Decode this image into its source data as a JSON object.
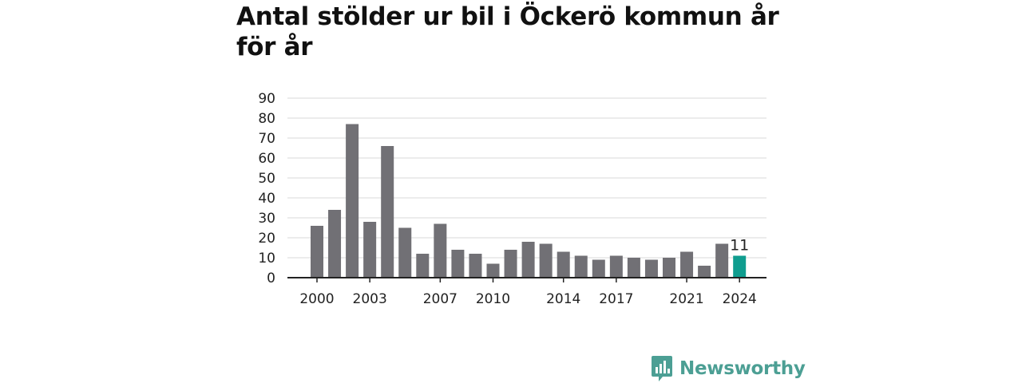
{
  "title": "Antal stölder ur bil i Öckerö kommun år för år",
  "logo": {
    "text": "Newsworthy",
    "icon": "bar-chart-speech-bubble-icon"
  },
  "colors": {
    "bar": "#717075",
    "highlight": "#0f9d8f",
    "grid": "#d9d9d9",
    "axis": "#222222",
    "logo": "#4c9f94"
  },
  "chart_data": {
    "type": "bar",
    "title": "Antal stölder ur bil i Öckerö kommun år för år",
    "xlabel": "",
    "ylabel": "",
    "categories": [
      2000,
      2001,
      2002,
      2003,
      2004,
      2005,
      2006,
      2007,
      2008,
      2009,
      2010,
      2011,
      2012,
      2013,
      2014,
      2015,
      2016,
      2017,
      2018,
      2019,
      2020,
      2021,
      2022,
      2023,
      2024
    ],
    "values": [
      26,
      34,
      77,
      28,
      66,
      25,
      12,
      27,
      14,
      12,
      7,
      14,
      18,
      17,
      13,
      11,
      9,
      11,
      10,
      9,
      10,
      13,
      6,
      17,
      11
    ],
    "x_tick_labels": [
      "2000",
      "2003",
      "2007",
      "2010",
      "2014",
      "2017",
      "2021",
      "2024"
    ],
    "y_ticks": [
      "0",
      "10",
      "20",
      "30",
      "40",
      "50",
      "60",
      "70",
      "80",
      "90"
    ],
    "ylim": [
      0,
      90
    ],
    "grid": true,
    "highlight_category": 2024,
    "highlight_label": "11"
  }
}
